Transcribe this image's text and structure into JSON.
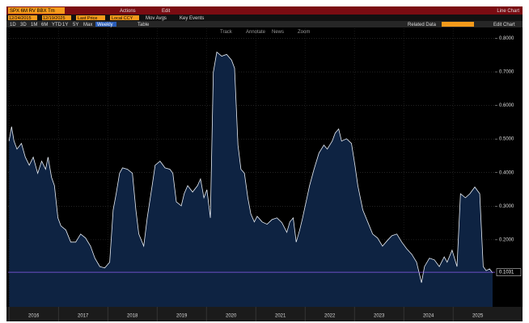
{
  "ui": {
    "ticker": "SPX 6M RV  BBX  Tm",
    "actions": "Actions",
    "edit": "Edit",
    "chart_kind": "Line Chart",
    "start_date": "12/24/2015",
    "end_date": "12/19/2025",
    "field": "Last Price",
    "currency": "Local CCY",
    "mov_avgs": "Mov Avgs",
    "key_events": "Key Events",
    "periods": [
      "1D",
      "3D",
      "1M",
      "6M",
      "YTD",
      "1Y",
      "5Y",
      "Max"
    ],
    "frequency": "Weekly",
    "table": "Table",
    "related": "Related Data",
    "edit_chart": "Edit Chart",
    "tools": [
      "Track",
      "Annotate",
      "News",
      "Zoom"
    ]
  },
  "chart_data": {
    "type": "area",
    "x": [
      2016.0,
      2016.05,
      2016.1,
      2016.16,
      2016.25,
      2016.33,
      2016.41,
      2016.49,
      2016.58,
      2016.66,
      2016.74,
      2016.79,
      2016.86,
      2016.92,
      2016.99,
      2017.05,
      2017.15,
      2017.25,
      2017.35,
      2017.45,
      2017.55,
      2017.65,
      2017.74,
      2017.84,
      2017.94,
      2018.04,
      2018.11,
      2018.17,
      2018.24,
      2018.3,
      2018.4,
      2018.5,
      2018.57,
      2018.63,
      2018.73,
      2018.8,
      2018.9,
      2018.96,
      2019.06,
      2019.16,
      2019.26,
      2019.32,
      2019.39,
      2019.49,
      2019.55,
      2019.62,
      2019.72,
      2019.82,
      2019.88,
      2019.95,
      2020.01,
      2020.08,
      2020.14,
      2020.21,
      2020.31,
      2020.41,
      2020.51,
      2020.57,
      2020.64,
      2020.7,
      2020.77,
      2020.84,
      2020.9,
      2020.97,
      2021.03,
      2021.13,
      2021.23,
      2021.33,
      2021.43,
      2021.53,
      2021.63,
      2021.69,
      2021.76,
      2021.82,
      2021.89,
      2021.95,
      2022.02,
      2022.09,
      2022.18,
      2022.28,
      2022.38,
      2022.45,
      2022.55,
      2022.61,
      2022.68,
      2022.74,
      2022.84,
      2022.94,
      2023.01,
      2023.07,
      2023.17,
      2023.27,
      2023.37,
      2023.47,
      2023.57,
      2023.67,
      2023.76,
      2023.86,
      2023.96,
      2024.06,
      2024.16,
      2024.26,
      2024.36,
      2024.42,
      2024.52,
      2024.62,
      2024.72,
      2024.82,
      2024.88,
      2024.98,
      2025.08,
      2025.15,
      2025.25,
      2025.34,
      2025.44,
      2025.54,
      2025.61,
      2025.67,
      2025.74,
      2025.8
    ],
    "values": [
      0.494,
      0.537,
      0.494,
      0.47,
      0.487,
      0.446,
      0.422,
      0.446,
      0.398,
      0.434,
      0.41,
      0.446,
      0.386,
      0.361,
      0.265,
      0.241,
      0.229,
      0.193,
      0.193,
      0.217,
      0.205,
      0.181,
      0.145,
      0.12,
      0.116,
      0.133,
      0.289,
      0.337,
      0.398,
      0.414,
      0.41,
      0.398,
      0.289,
      0.217,
      0.181,
      0.265,
      0.361,
      0.422,
      0.434,
      0.414,
      0.41,
      0.398,
      0.313,
      0.301,
      0.337,
      0.361,
      0.342,
      0.361,
      0.381,
      0.325,
      0.349,
      0.265,
      0.699,
      0.759,
      0.747,
      0.752,
      0.735,
      0.711,
      0.482,
      0.41,
      0.398,
      0.325,
      0.277,
      0.253,
      0.27,
      0.253,
      0.246,
      0.26,
      0.265,
      0.251,
      0.222,
      0.253,
      0.265,
      0.193,
      0.229,
      0.265,
      0.313,
      0.361,
      0.41,
      0.458,
      0.482,
      0.47,
      0.494,
      0.518,
      0.53,
      0.494,
      0.501,
      0.487,
      0.422,
      0.361,
      0.289,
      0.253,
      0.217,
      0.205,
      0.181,
      0.198,
      0.212,
      0.217,
      0.193,
      0.173,
      0.157,
      0.133,
      0.072,
      0.12,
      0.145,
      0.14,
      0.12,
      0.149,
      0.133,
      0.169,
      0.12,
      0.337,
      0.325,
      0.337,
      0.357,
      0.337,
      0.12,
      0.108,
      0.113,
      0.101
    ],
    "color": "#e8eef6",
    "fill": "#0e2342",
    "last_value": 0.1031,
    "last_color": "#8a5cf0",
    "xlim": [
      2015.98,
      2025.85
    ],
    "xticks": [
      {
        "value": 2016,
        "label": "2016"
      },
      {
        "value": 2017,
        "label": "2017"
      },
      {
        "value": 2018,
        "label": "2018"
      },
      {
        "value": 2019,
        "label": "2019"
      },
      {
        "value": 2020,
        "label": "2020"
      },
      {
        "value": 2021,
        "label": "2021"
      },
      {
        "value": 2022,
        "label": "2022"
      },
      {
        "value": 2023,
        "label": "2023"
      },
      {
        "value": 2024,
        "label": "2024"
      },
      {
        "value": 2025,
        "label": "2025"
      }
    ],
    "ylim": [
      0,
      0.83
    ],
    "yticks": [
      {
        "value": 0.2,
        "label": "0.2000"
      },
      {
        "value": 0.3,
        "label": "0.3000"
      },
      {
        "value": 0.4,
        "label": "0.4000"
      },
      {
        "value": 0.5,
        "label": "0.5000"
      },
      {
        "value": 0.6,
        "label": "0.6000"
      },
      {
        "value": 0.7,
        "label": "0.7000"
      },
      {
        "value": 0.8,
        "label": "0.8000"
      }
    ],
    "grid": true
  }
}
